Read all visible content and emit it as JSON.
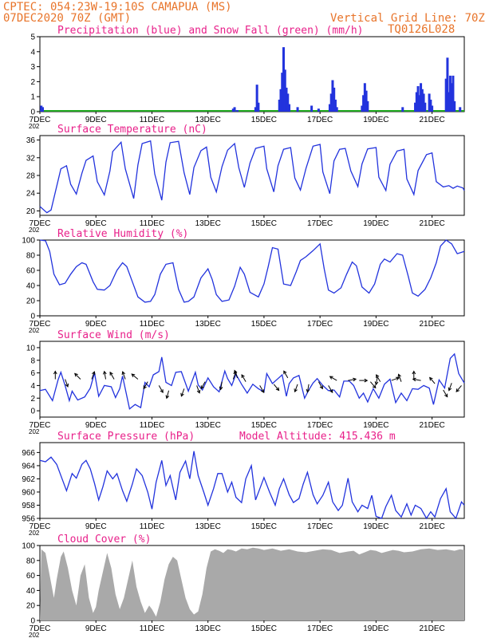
{
  "header": {
    "line1": "CPTEC:  054:23W-19:10S  CAMAPUA (MS)",
    "line2_left": "07DEC2020 70Z (GMT)",
    "line2_right": "Vertical Grid Line: 70Z",
    "line3_right": "TQ0126L028",
    "year_stub": "202"
  },
  "colors": {
    "series": "#2233dd",
    "snow": "#22aa22",
    "cloud": "#a9a9a9",
    "header": "#e8742a",
    "title": "#e8208a"
  },
  "x_axis": {
    "tick_labels": [
      "7DEC",
      "9DEC",
      "11DEC",
      "13DEC",
      "15DEC",
      "17DEC",
      "19DEC",
      "21DEC"
    ],
    "tick_days": [
      7,
      9,
      11,
      13,
      15,
      17,
      19,
      21
    ],
    "range_days": [
      7,
      22.15
    ]
  },
  "chart_data": [
    {
      "type": "bar",
      "title": "Precipitation (blue) and Snow Fall (green) (mm/h)",
      "ylim": [
        0,
        5
      ],
      "yticks": [
        0,
        1,
        2,
        3,
        4,
        5
      ],
      "precip_bars": [
        [
          7.05,
          0.4
        ],
        [
          7.1,
          0.3
        ],
        [
          13.9,
          0.2
        ],
        [
          13.95,
          0.3
        ],
        [
          14.05,
          0.1
        ],
        [
          14.7,
          0.3
        ],
        [
          14.75,
          1.8
        ],
        [
          14.8,
          0.6
        ],
        [
          15.55,
          0.8
        ],
        [
          15.6,
          1.5
        ],
        [
          15.65,
          2.6
        ],
        [
          15.7,
          4.3
        ],
        [
          15.75,
          2.8
        ],
        [
          15.8,
          1.6
        ],
        [
          15.85,
          1.2
        ],
        [
          15.9,
          0.5
        ],
        [
          16.2,
          0.3
        ],
        [
          16.7,
          0.4
        ],
        [
          16.95,
          0.2
        ],
        [
          17.35,
          0.5
        ],
        [
          17.4,
          1.2
        ],
        [
          17.45,
          2.1
        ],
        [
          17.5,
          1.6
        ],
        [
          17.55,
          0.8
        ],
        [
          17.6,
          0.3
        ],
        [
          18.5,
          0.4
        ],
        [
          18.55,
          1.1
        ],
        [
          18.6,
          1.9
        ],
        [
          18.65,
          1.4
        ],
        [
          18.7,
          0.7
        ],
        [
          19.95,
          0.3
        ],
        [
          20.4,
          0.6
        ],
        [
          20.45,
          1.3
        ],
        [
          20.5,
          1.7
        ],
        [
          20.55,
          1.1
        ],
        [
          20.6,
          1.9
        ],
        [
          20.65,
          1.5
        ],
        [
          20.7,
          1.2
        ],
        [
          20.75,
          0.6
        ],
        [
          20.9,
          1.2
        ],
        [
          20.95,
          0.8
        ],
        [
          21.0,
          0.4
        ],
        [
          21.5,
          2.2
        ],
        [
          21.55,
          3.6
        ],
        [
          21.6,
          1.3
        ],
        [
          21.65,
          2.4
        ],
        [
          21.7,
          1.9
        ],
        [
          21.75,
          2.4
        ],
        [
          21.8,
          0.7
        ],
        [
          22.0,
          0.3
        ]
      ]
    },
    {
      "type": "line",
      "title": "Surface Temperature (nC)",
      "ylim": [
        19,
        37
      ],
      "yticks": [
        20,
        24,
        28,
        32,
        36
      ],
      "x": [
        7.0,
        7.25,
        7.4,
        7.75,
        7.95,
        8.1,
        8.3,
        8.5,
        8.65,
        8.9,
        9.05,
        9.3,
        9.5,
        9.6,
        9.9,
        10.05,
        10.35,
        10.5,
        10.65,
        10.95,
        11.1,
        11.35,
        11.5,
        11.65,
        11.95,
        12.15,
        12.35,
        12.5,
        12.75,
        12.95,
        13.1,
        13.3,
        13.5,
        13.7,
        13.95,
        14.1,
        14.3,
        14.5,
        14.7,
        15.0,
        15.1,
        15.35,
        15.5,
        15.7,
        15.95,
        16.1,
        16.3,
        16.5,
        16.75,
        17.0,
        17.1,
        17.35,
        17.5,
        17.7,
        17.9,
        18.1,
        18.35,
        18.5,
        18.7,
        19.0,
        19.1,
        19.35,
        19.5,
        19.75,
        20.0,
        20.1,
        20.35,
        20.5,
        20.8,
        21.0,
        21.15,
        21.4,
        21.6,
        21.75,
        21.9,
        22.1,
        22.15
      ],
      "y": [
        21,
        19.6,
        20.2,
        29.5,
        30.2,
        26.0,
        23.8,
        28.5,
        31.4,
        32.4,
        26.6,
        23.6,
        29.0,
        33.4,
        35.5,
        29.5,
        22.8,
        30.4,
        35.2,
        35.8,
        28.3,
        22.4,
        31.0,
        35.4,
        35.7,
        28.6,
        23.7,
        29.8,
        33.6,
        34.4,
        27.6,
        24.3,
        30.0,
        33.7,
        35.2,
        29.8,
        25.3,
        30.8,
        34.1,
        34.6,
        29.5,
        24.3,
        30.2,
        33.9,
        34.3,
        27.4,
        24.7,
        29.6,
        34.6,
        35.0,
        28.8,
        23.9,
        31.3,
        33.9,
        34.1,
        29.0,
        25.5,
        30.6,
        34.0,
        34.3,
        27.6,
        24.6,
        30.5,
        33.5,
        33.9,
        27.2,
        23.7,
        29.1,
        32.7,
        33.1,
        26.6,
        25.4,
        25.7,
        25.1,
        25.6,
        25.2,
        24.6
      ]
    },
    {
      "type": "line",
      "title": "Relative Humidity (%)",
      "ylim": [
        0,
        100
      ],
      "yticks": [
        0,
        20,
        40,
        60,
        80,
        100
      ],
      "x": [
        7.0,
        7.2,
        7.35,
        7.5,
        7.7,
        7.9,
        8.1,
        8.3,
        8.5,
        8.65,
        8.9,
        9.05,
        9.3,
        9.5,
        9.75,
        9.95,
        10.1,
        10.3,
        10.5,
        10.75,
        10.95,
        11.1,
        11.3,
        11.5,
        11.75,
        11.95,
        12.15,
        12.3,
        12.5,
        12.75,
        13.0,
        13.15,
        13.3,
        13.5,
        13.75,
        13.95,
        14.15,
        14.3,
        14.5,
        14.8,
        15.0,
        15.15,
        15.3,
        15.5,
        15.7,
        15.95,
        16.15,
        16.3,
        16.5,
        16.75,
        17.0,
        17.15,
        17.3,
        17.5,
        17.75,
        17.95,
        18.15,
        18.3,
        18.5,
        18.75,
        18.95,
        19.15,
        19.3,
        19.5,
        19.75,
        19.95,
        20.15,
        20.3,
        20.5,
        20.75,
        20.95,
        21.15,
        21.3,
        21.5,
        21.7,
        21.9,
        22.15
      ],
      "y": [
        100,
        99,
        85,
        55,
        41,
        43,
        55,
        65,
        70,
        68,
        45,
        35,
        34,
        40,
        60,
        70,
        65,
        45,
        25,
        18,
        19,
        28,
        55,
        68,
        70,
        35,
        18,
        19,
        25,
        50,
        62,
        48,
        28,
        19,
        21,
        39,
        64,
        55,
        31,
        25,
        42,
        65,
        90,
        88,
        42,
        40,
        58,
        73,
        78,
        86,
        95,
        62,
        34,
        30,
        37,
        55,
        71,
        66,
        38,
        30,
        42,
        68,
        75,
        71,
        82,
        80,
        52,
        30,
        26,
        35,
        50,
        70,
        92,
        100,
        95,
        82,
        85
      ]
    },
    {
      "type": "line",
      "title": "Surface Wind (m/s)",
      "ylim": [
        -1,
        11
      ],
      "yticks": [
        0,
        2,
        4,
        6,
        8,
        10
      ],
      "x": [
        7.0,
        7.2,
        7.45,
        7.65,
        7.75,
        7.9,
        8.05,
        8.15,
        8.35,
        8.6,
        8.8,
        8.95,
        9.1,
        9.3,
        9.55,
        9.7,
        9.85,
        9.95,
        10.2,
        10.4,
        10.6,
        10.75,
        10.9,
        11.05,
        11.25,
        11.35,
        11.5,
        11.7,
        11.85,
        12.05,
        12.3,
        12.55,
        12.65,
        12.8,
        13.0,
        13.2,
        13.4,
        13.6,
        13.7,
        13.85,
        14.0,
        14.2,
        14.4,
        14.6,
        14.8,
        15.0,
        15.1,
        15.3,
        15.5,
        15.65,
        15.8,
        15.9,
        16.05,
        16.25,
        16.45,
        16.6,
        16.75,
        16.9,
        17.1,
        17.3,
        17.5,
        17.7,
        17.85,
        18.05,
        18.2,
        18.4,
        18.55,
        18.7,
        18.9,
        19.1,
        19.3,
        19.5,
        19.7,
        19.9,
        20.1,
        20.3,
        20.5,
        20.7,
        20.9,
        21.05,
        21.25,
        21.45,
        21.65,
        21.8,
        21.95,
        22.15
      ],
      "y": [
        3.2,
        3.4,
        1.6,
        4.9,
        6.1,
        4.0,
        1.6,
        3.1,
        1.7,
        2.2,
        3.6,
        6.0,
        2.3,
        4.0,
        3.8,
        2.1,
        3.5,
        5.5,
        0.3,
        1.0,
        0.5,
        4.5,
        3.8,
        5.7,
        6.2,
        8.5,
        4.5,
        4.0,
        6.1,
        6.2,
        3.1,
        6.1,
        4.1,
        3.3,
        5.2,
        3.8,
        3.0,
        6.3,
        5.1,
        4.0,
        5.8,
        4.2,
        2.8,
        4.2,
        3.5,
        3.0,
        5.9,
        4.3,
        5.1,
        5.7,
        2.3,
        4.3,
        5.2,
        5.6,
        2.0,
        3.3,
        4.4,
        5.1,
        4.0,
        3.2,
        3.3,
        2.2,
        4.7,
        4.7,
        4.0,
        2.0,
        2.8,
        1.4,
        3.5,
        2.0,
        4.2,
        5.0,
        1.3,
        2.8,
        1.6,
        3.5,
        3.4,
        4.0,
        3.6,
        1.0,
        4.9,
        3.6,
        8.3,
        9.0,
        5.9,
        4.4
      ]
    },
    {
      "type": "line",
      "title": "Surface Pressure (hPa)",
      "subtitle": "Model Altitude: 415.436 m",
      "ylim": [
        956,
        967.5
      ],
      "yticks": [
        956,
        958,
        960,
        962,
        964,
        966
      ],
      "x": [
        7.0,
        7.2,
        7.4,
        7.6,
        7.75,
        7.95,
        8.15,
        8.3,
        8.5,
        8.65,
        8.8,
        8.95,
        9.1,
        9.25,
        9.4,
        9.6,
        9.75,
        9.95,
        10.1,
        10.3,
        10.45,
        10.65,
        10.85,
        11.0,
        11.15,
        11.35,
        11.5,
        11.65,
        11.85,
        12.0,
        12.2,
        12.35,
        12.5,
        12.65,
        12.85,
        13.0,
        13.2,
        13.35,
        13.5,
        13.7,
        13.85,
        14.0,
        14.2,
        14.35,
        14.55,
        14.7,
        14.85,
        15.0,
        15.2,
        15.4,
        15.55,
        15.7,
        15.9,
        16.05,
        16.25,
        16.4,
        16.55,
        16.75,
        16.9,
        17.1,
        17.3,
        17.45,
        17.65,
        17.8,
        18.0,
        18.15,
        18.35,
        18.5,
        18.7,
        18.85,
        19.0,
        19.2,
        19.35,
        19.55,
        19.7,
        19.9,
        20.1,
        20.25,
        20.4,
        20.6,
        20.8,
        20.95,
        21.1,
        21.3,
        21.5,
        21.65,
        21.85,
        22.05,
        22.15
      ],
      "y": [
        964.8,
        964.6,
        965.3,
        964.2,
        962.5,
        960.2,
        962.8,
        962.1,
        964.2,
        964.8,
        963.5,
        961.3,
        958.8,
        960.8,
        963.2,
        962.0,
        962.8,
        960.2,
        958.6,
        961.2,
        963.5,
        962.5,
        960.0,
        957.4,
        961.5,
        964.8,
        961.0,
        962.5,
        958.8,
        963.0,
        964.7,
        962.0,
        966.2,
        962.5,
        960.0,
        958.0,
        960.5,
        962.8,
        962.8,
        960.0,
        961.5,
        959.2,
        958.4,
        962.0,
        964.0,
        958.8,
        960.5,
        962.2,
        960.0,
        958.0,
        960.5,
        962.0,
        959.6,
        958.4,
        959.0,
        961.2,
        963.0,
        959.6,
        958.2,
        959.5,
        961.5,
        958.5,
        957.2,
        958.0,
        962.1,
        958.5,
        957.0,
        958.0,
        957.5,
        959.5,
        956.3,
        955.8,
        957.8,
        959.5,
        957.2,
        956.2,
        958.2,
        956.5,
        958.0,
        957.5,
        955.8,
        957.0,
        956.2,
        959.0,
        960.5,
        957.0,
        956.0,
        958.5,
        958.0
      ]
    },
    {
      "type": "area",
      "title": "Cloud Cover (%)",
      "ylim": [
        0,
        100
      ],
      "yticks": [
        0,
        20,
        40,
        60,
        80,
        100
      ],
      "x": [
        7.0,
        7.05,
        7.2,
        7.35,
        7.5,
        7.6,
        7.75,
        7.85,
        8.0,
        8.15,
        8.3,
        8.45,
        8.6,
        8.75,
        8.9,
        9.0,
        9.1,
        9.25,
        9.4,
        9.55,
        9.7,
        9.85,
        10.0,
        10.15,
        10.3,
        10.45,
        10.6,
        10.75,
        10.9,
        11.0,
        11.15,
        11.3,
        11.45,
        11.6,
        11.75,
        11.9,
        12.05,
        12.2,
        12.35,
        12.5,
        12.65,
        12.8,
        12.95,
        13.1,
        13.25,
        13.4,
        13.55,
        13.7,
        13.85,
        14.0,
        14.2,
        14.4,
        14.6,
        14.8,
        15.0,
        15.3,
        15.6,
        15.9,
        16.2,
        16.5,
        16.8,
        17.1,
        17.4,
        17.7,
        18.0,
        18.2,
        18.4,
        18.6,
        18.8,
        19.0,
        19.2,
        19.4,
        19.6,
        19.8,
        20.0,
        20.3,
        20.6,
        20.9,
        21.2,
        21.5,
        21.8,
        22.0,
        22.15
      ],
      "y": [
        0,
        95,
        90,
        60,
        30,
        55,
        85,
        92,
        70,
        40,
        20,
        60,
        75,
        30,
        10,
        18,
        40,
        65,
        90,
        70,
        35,
        15,
        30,
        55,
        80,
        45,
        25,
        10,
        20,
        15,
        5,
        25,
        55,
        75,
        85,
        80,
        55,
        30,
        15,
        8,
        12,
        35,
        70,
        92,
        95,
        93,
        90,
        95,
        94,
        92,
        96,
        95,
        97,
        96,
        94,
        96,
        93,
        95,
        92,
        91,
        93,
        95,
        94,
        90,
        92,
        93,
        88,
        91,
        94,
        93,
        90,
        92,
        94,
        93,
        91,
        92,
        95,
        96,
        94,
        95,
        93,
        95,
        94
      ]
    }
  ]
}
